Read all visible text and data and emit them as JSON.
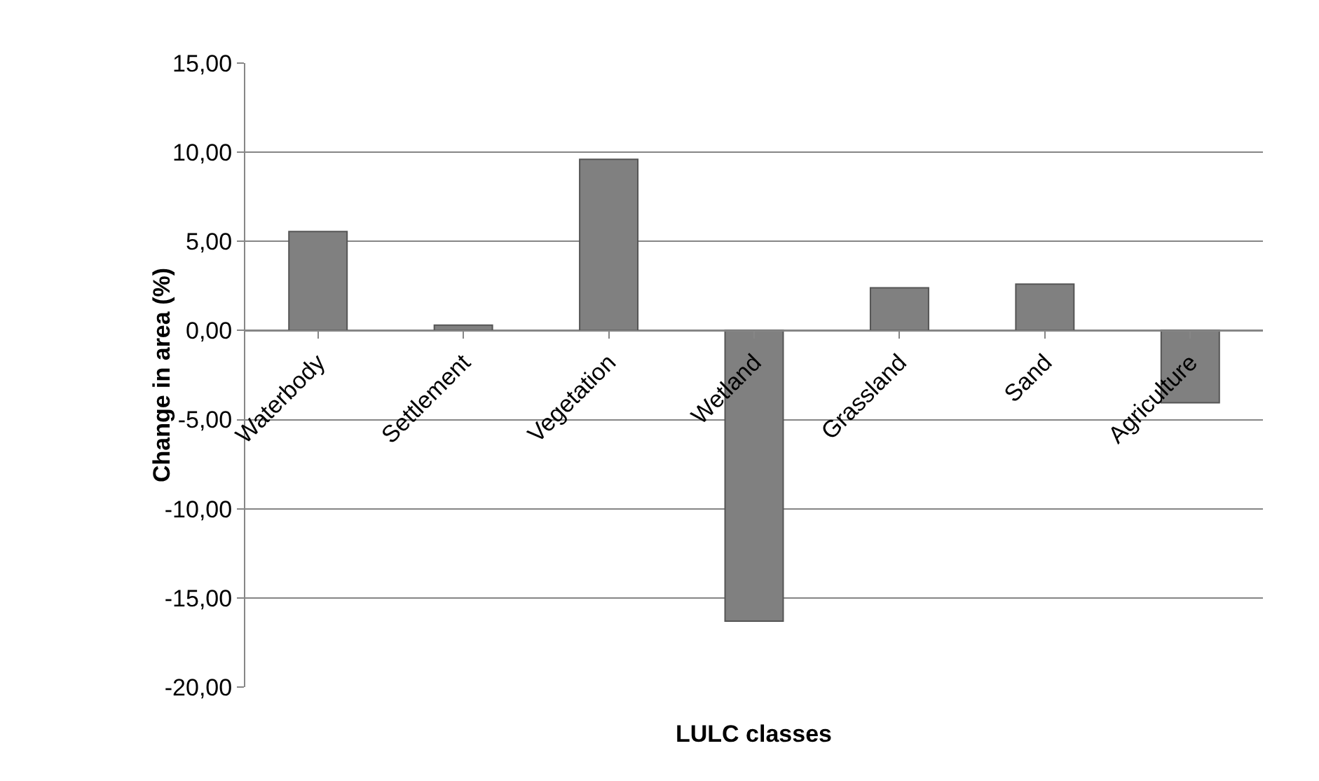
{
  "chart_data": {
    "type": "bar",
    "xlabel": "LULC classes",
    "ylabel": "Change in area (%)",
    "categories": [
      "Waterbody",
      "Settlement",
      "Vegetation",
      "Wetland",
      "Grassland",
      "Sand",
      "Agriculture"
    ],
    "values": [
      5.55,
      0.3,
      9.6,
      -16.3,
      2.4,
      2.6,
      -4.05
    ],
    "color": "#808080",
    "ylim": [
      -20,
      15
    ],
    "yticks": [
      {
        "value": -20,
        "label": "-20,00"
      },
      {
        "value": -15,
        "label": "-15,00"
      },
      {
        "value": -10,
        "label": "-10,00"
      },
      {
        "value": -5,
        "label": "-5,00"
      },
      {
        "value": 0,
        "label": "0,00"
      },
      {
        "value": 5,
        "label": "5,00"
      },
      {
        "value": 10,
        "label": "10,00"
      },
      {
        "value": 15,
        "label": "15,00"
      }
    ],
    "grid": "y"
  }
}
